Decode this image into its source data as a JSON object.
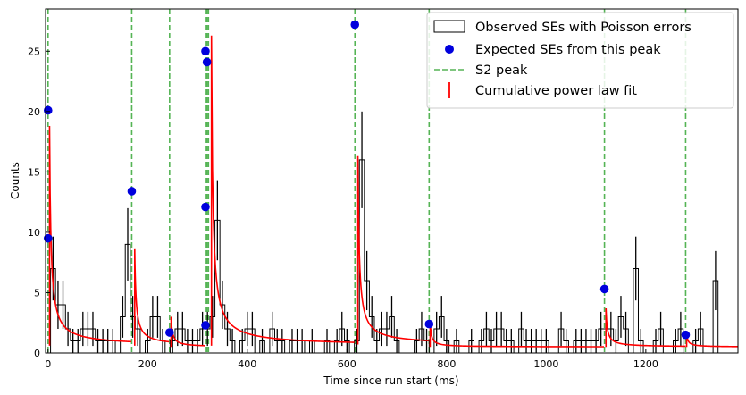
{
  "chart_data": {
    "type": "scatter",
    "xlabel": "Time since run start (ms)",
    "ylabel": "Counts",
    "xlim": [
      -5,
      1385
    ],
    "ylim": [
      0,
      28.5
    ],
    "xticks": [
      0,
      200,
      400,
      600,
      800,
      1000,
      1200
    ],
    "yticks": [
      0,
      5,
      10,
      15,
      20,
      25
    ],
    "grid": false,
    "legend_position": "top-right",
    "legend": {
      "observed": "Observed SEs with Poisson errors",
      "expected": "Expected SEs from this peak",
      "s2": "S2 peak",
      "fit": "Cumulative power law fit"
    },
    "colors": {
      "histogram": "#000000",
      "expected": "#0000dd",
      "s2": "#55b455",
      "fit": "#ff0000"
    },
    "s2_peaks": [
      0,
      168,
      244,
      316,
      319,
      322,
      616,
      765,
      1117,
      1280
    ],
    "expected_points": [
      {
        "x": 0,
        "y": 20.1
      },
      {
        "x": 0,
        "y": 9.5
      },
      {
        "x": 168,
        "y": 13.4
      },
      {
        "x": 244,
        "y": 1.7
      },
      {
        "x": 316,
        "y": 25.0
      },
      {
        "x": 319,
        "y": 24.1
      },
      {
        "x": 316,
        "y": 12.1
      },
      {
        "x": 316,
        "y": 2.3
      },
      {
        "x": 616,
        "y": 27.2
      },
      {
        "x": 765,
        "y": 2.4
      },
      {
        "x": 1117,
        "y": 5.3
      },
      {
        "x": 1280,
        "y": 1.5
      }
    ],
    "histogram": {
      "bin_start": -5,
      "bin_width": 10,
      "counts": [
        0,
        7,
        4,
        4,
        2,
        1,
        1,
        2,
        2,
        2,
        1,
        1,
        1,
        1,
        0,
        3,
        9,
        3,
        2,
        0,
        1,
        3,
        3,
        1,
        0,
        1,
        2,
        2,
        1,
        1,
        1,
        2,
        2,
        3,
        11,
        4,
        2,
        1,
        0,
        1,
        2,
        2,
        0,
        1,
        0,
        2,
        1,
        1,
        0,
        1,
        1,
        1,
        0,
        1,
        0,
        0,
        1,
        0,
        1,
        2,
        1,
        0,
        1,
        16,
        6,
        3,
        1,
        2,
        2,
        3,
        1,
        0,
        0,
        0,
        1,
        2,
        1,
        0,
        2,
        3,
        1,
        0,
        1,
        0,
        0,
        1,
        0,
        1,
        2,
        1,
        2,
        2,
        1,
        1,
        0,
        2,
        1,
        1,
        1,
        1,
        1,
        0,
        0,
        2,
        1,
        0,
        1,
        1,
        1,
        1,
        1,
        2,
        2,
        2,
        1,
        3,
        2,
        0,
        7,
        1,
        0,
        0,
        1,
        2,
        0,
        0,
        1,
        2,
        0,
        0,
        1,
        2,
        0,
        0,
        6
      ]
    },
    "fit_segments": [
      {
        "start": 3,
        "end": 167,
        "peak": 18.8,
        "base": 0.6
      },
      {
        "start": 174,
        "end": 243,
        "peak": 8.6,
        "base": 0.6
      },
      {
        "start": 247,
        "end": 316,
        "peak": 3.0,
        "base": 0.5
      },
      {
        "start": 328,
        "end": 615,
        "peak": 26.3,
        "base": 0.6
      },
      {
        "start": 622,
        "end": 764,
        "peak": 16.3,
        "base": 0.7
      },
      {
        "start": 767,
        "end": 1116,
        "peak": 2.4,
        "base": 0.5
      },
      {
        "start": 1120,
        "end": 1280,
        "peak": 3.7,
        "base": 0.5
      },
      {
        "start": 1282,
        "end": 1385,
        "peak": 1.6,
        "base": 0.5
      }
    ]
  }
}
